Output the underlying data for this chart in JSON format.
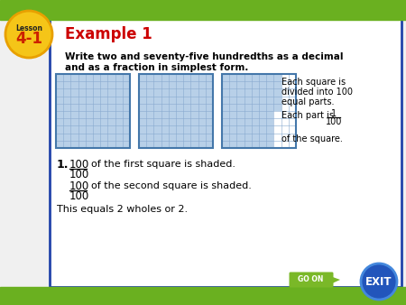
{
  "bg_color": "#f0f0f0",
  "top_bar_color": "#6ab020",
  "bottom_bar_color": "#6ab020",
  "title": "Example 1",
  "title_color": "#cc0000",
  "lesson_badge_color": "#f5c518",
  "lesson_badge_border": "#e8a000",
  "lesson_text": "Lesson",
  "lesson_num": "4-1",
  "lesson_text_color": "#222222",
  "lesson_num_color": "#cc2200",
  "content_bg": "#ffffff",
  "content_border": "#2244aa",
  "problem_text_line1": "Write two and seventy-five hundredths as a decimal",
  "problem_text_line2": "and as a fraction in simplest form.",
  "right_text_line1": "Each square is",
  "right_text_line2": "divided into 100",
  "right_text_line3": "equal parts.",
  "right_text_line4": "Each part is",
  "right_frac_num": "1",
  "right_frac_den": "100",
  "right_text_line5": "of the square.",
  "item1_label": "1.",
  "item1_num": "100",
  "item1_den": "100",
  "item1_text": "of the first square is shaded.",
  "item2_num": "100",
  "item2_den": "100",
  "item2_text": "of the second square is shaded.",
  "item3_text": "This equals 2 wholes or 2.",
  "grid_shaded_color": "#b8d0e8",
  "grid_line_color": "#88aacf",
  "grid_border_color": "#4477aa",
  "go_on_bg": "#7ab828",
  "go_on_text": "GO ON",
  "exit_bg": "#2255bb",
  "exit_text": "EXIT"
}
